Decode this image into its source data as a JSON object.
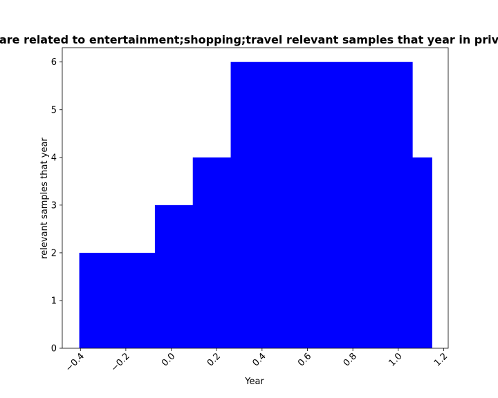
{
  "chart_data": {
    "type": "bar",
    "title": "are related to entertainment;shopping;travel relevant samples that year in priv",
    "xlabel": "Year",
    "ylabel": "relevant samples that year",
    "xlim": [
      -0.48,
      1.22
    ],
    "ylim": [
      0,
      6.3
    ],
    "xticks": [
      -0.4,
      -0.2,
      0.0,
      0.2,
      0.4,
      0.6,
      0.8,
      1.0,
      1.2
    ],
    "xtick_labels": [
      "−0.4",
      "−0.2",
      "0.0",
      "0.2",
      "0.4",
      "0.6",
      "0.8",
      "1.0",
      "1.2"
    ],
    "yticks": [
      0,
      1,
      2,
      3,
      4,
      5,
      6
    ],
    "ytick_labels": [
      "0",
      "1",
      "2",
      "3",
      "4",
      "5",
      "6"
    ],
    "grid": false,
    "bar_color": "#0000ff",
    "bars": [
      {
        "x0": -0.405,
        "x1": -0.072,
        "value": 2
      },
      {
        "x0": -0.072,
        "x1": 0.095,
        "value": 3
      },
      {
        "x0": 0.095,
        "x1": 0.262,
        "value": 4
      },
      {
        "x0": 0.262,
        "x1": 1.062,
        "value": 6
      },
      {
        "x0": 1.062,
        "x1": 1.148,
        "value": 4
      }
    ]
  }
}
